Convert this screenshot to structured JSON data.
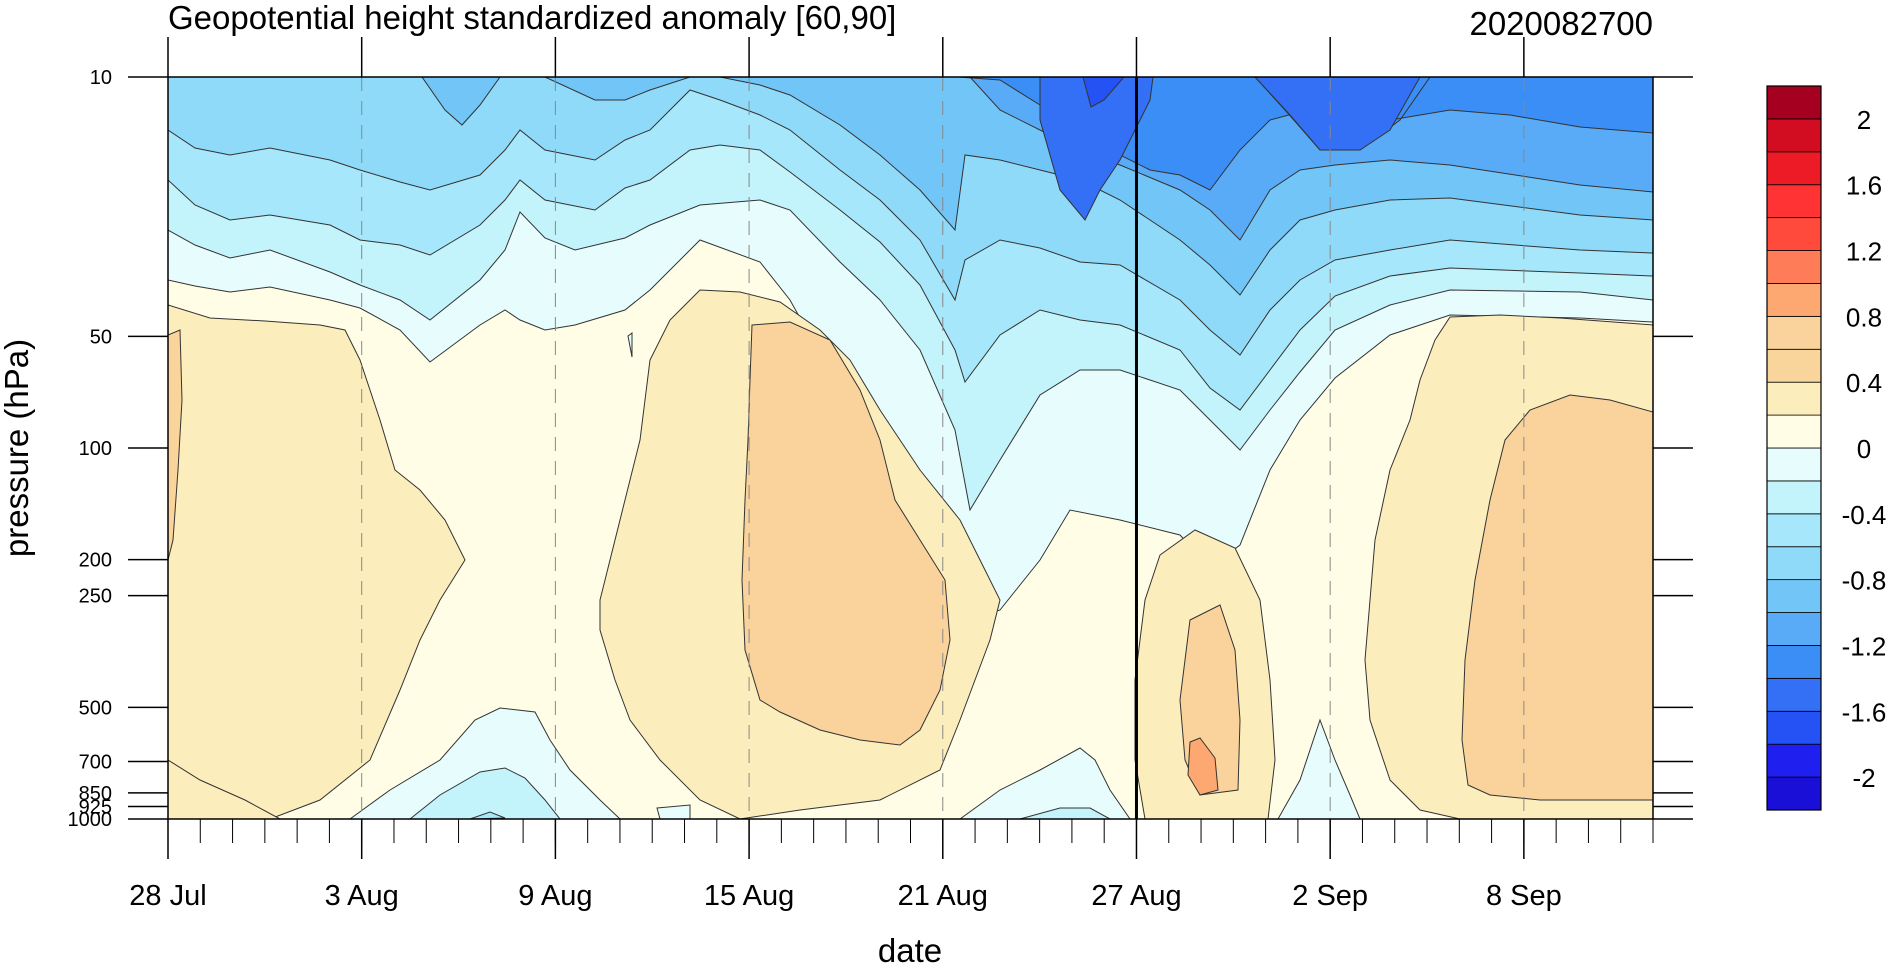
{
  "chart_data": {
    "type": "heatmap",
    "title": "Geopotential height standardized anomaly [60,90]",
    "subtitle": "2020082700",
    "xlabel": "date",
    "ylabel": "pressure (hPa)",
    "x_tick_labels": [
      "28 Jul",
      "3 Aug",
      "9 Aug",
      "15 Aug",
      "21 Aug",
      "27 Aug",
      "2 Sep",
      "8 Sep"
    ],
    "x_tick_dates": [
      "2020-07-28",
      "2020-08-03",
      "2020-08-09",
      "2020-08-15",
      "2020-08-21",
      "2020-08-27",
      "2020-09-02",
      "2020-09-08"
    ],
    "x_range": [
      "2020-07-28",
      "2020-09-12"
    ],
    "y_tick_labels": [
      "10",
      "50",
      "100",
      "200",
      "250",
      "500",
      "700",
      "850",
      "925",
      "1000"
    ],
    "y_scale": "log",
    "y_reversed": true,
    "ylim": [
      1000,
      10
    ],
    "current_date_marker": "2020-08-27",
    "grid": "dashed vertical lines at x ticks",
    "colorbar": {
      "levels": [
        -2.2,
        -2.0,
        -1.8,
        -1.6,
        -1.4,
        -1.2,
        -1.0,
        -0.8,
        -0.6,
        -0.4,
        -0.2,
        0,
        0.2,
        0.4,
        0.6,
        0.8,
        1.0,
        1.2,
        1.4,
        1.6,
        1.8,
        2.0,
        2.2
      ],
      "labels": [
        "-2",
        "-1.6",
        "-1.2",
        "-0.8",
        "-0.4",
        "0",
        "0.4",
        "0.8",
        "1.2",
        "1.6",
        "2"
      ],
      "colors": [
        "#1a0fd6",
        "#1f20ef",
        "#2452f5",
        "#3370f5",
        "#3b8ef5",
        "#5aabf7",
        "#72c6f7",
        "#8fdaf9",
        "#a6e7fb",
        "#c3f3fb",
        "#e7fcfd",
        "#fffde6",
        "#fcedbc",
        "#fad59b",
        "#fad39c",
        "#fda771",
        "#ff7c58",
        "#ff4a3c",
        "#ff3333",
        "#ec1b26",
        "#d20c21",
        "#a5001f"
      ]
    }
  }
}
